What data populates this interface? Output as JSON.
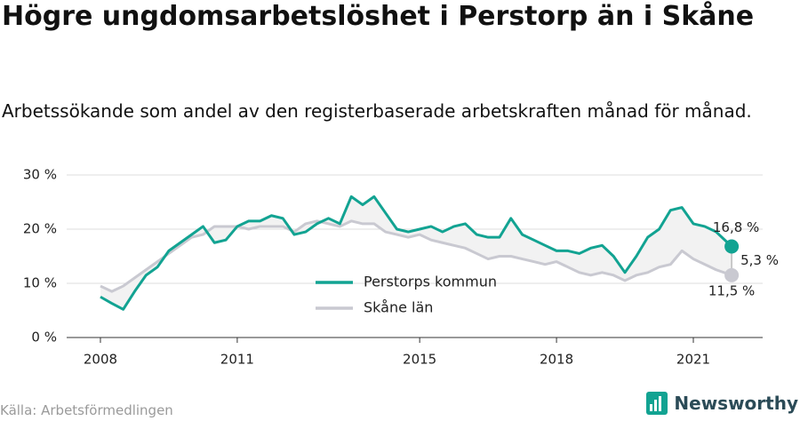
{
  "chart_data": {
    "type": "line",
    "title": "Högre ungdomsarbetslöshet i Perstorp än i Skåne",
    "subtitle": "Arbetssökande som andel av den registerbaserade arbetskraften månad för månad.",
    "source": "Källa: Arbetsförmedlingen",
    "brand": "Newsworthy",
    "x": [
      2008.0,
      2008.25,
      2008.5,
      2008.75,
      2009.0,
      2009.25,
      2009.5,
      2009.75,
      2010.0,
      2010.25,
      2010.5,
      2010.75,
      2011.0,
      2011.25,
      2011.5,
      2011.75,
      2012.0,
      2012.25,
      2012.5,
      2012.75,
      2013.0,
      2013.25,
      2013.5,
      2013.75,
      2014.0,
      2014.25,
      2014.5,
      2014.75,
      2015.0,
      2015.25,
      2015.5,
      2015.75,
      2016.0,
      2016.25,
      2016.5,
      2016.75,
      2017.0,
      2017.25,
      2017.5,
      2017.75,
      2018.0,
      2018.25,
      2018.5,
      2018.75,
      2019.0,
      2019.25,
      2019.5,
      2019.75,
      2020.0,
      2020.25,
      2020.5,
      2020.75,
      2021.0,
      2021.25,
      2021.5,
      2021.84
    ],
    "series": [
      {
        "name": "Perstorps kommun",
        "color": "#12a392",
        "values": [
          7.5,
          6.3,
          5.2,
          8.5,
          11.5,
          13,
          16,
          17.5,
          19,
          20.5,
          17.5,
          18,
          20.5,
          21.5,
          21.5,
          22.5,
          22,
          19,
          19.5,
          21,
          22,
          21,
          26,
          24.5,
          26,
          23,
          20,
          19.5,
          20,
          20.5,
          19.5,
          20.5,
          21,
          19,
          18.5,
          18.5,
          22,
          19,
          18,
          17,
          16,
          16,
          15.5,
          16.5,
          17,
          15,
          12,
          15,
          18.5,
          20,
          23.5,
          24,
          21,
          20.5,
          19.5,
          16.8
        ]
      },
      {
        "name": "Skåne län",
        "color": "#c9c9d1",
        "values": [
          9.5,
          8.5,
          9.5,
          11,
          12.5,
          14,
          15.5,
          17,
          18.5,
          19,
          20.5,
          20.5,
          20.5,
          20,
          20.5,
          20.5,
          20.5,
          19.5,
          21,
          21.5,
          21,
          20.5,
          21.5,
          21,
          21,
          19.5,
          19,
          18.5,
          19,
          18,
          17.5,
          17,
          16.5,
          15.5,
          14.5,
          15,
          15,
          14.5,
          14,
          13.5,
          14,
          13,
          12,
          11.5,
          12,
          11.5,
          10.5,
          11.5,
          12,
          13,
          13.5,
          16,
          14.5,
          13.5,
          12.5,
          11.5
        ]
      }
    ],
    "annotations": [
      "16,8 %",
      "5,3 %",
      "11,5 %"
    ],
    "xlim": [
      2007.26,
      2022.52
    ],
    "xticks": [
      2008,
      2011,
      2015,
      2018,
      2021
    ],
    "ylim": [
      0,
      30
    ],
    "yticks": [
      {
        "value": 0,
        "label": "0 %"
      },
      {
        "value": 10,
        "label": "10 %"
      },
      {
        "value": 20,
        "label": "20 %"
      },
      {
        "value": 30,
        "label": "30 %"
      }
    ],
    "grid": true
  }
}
